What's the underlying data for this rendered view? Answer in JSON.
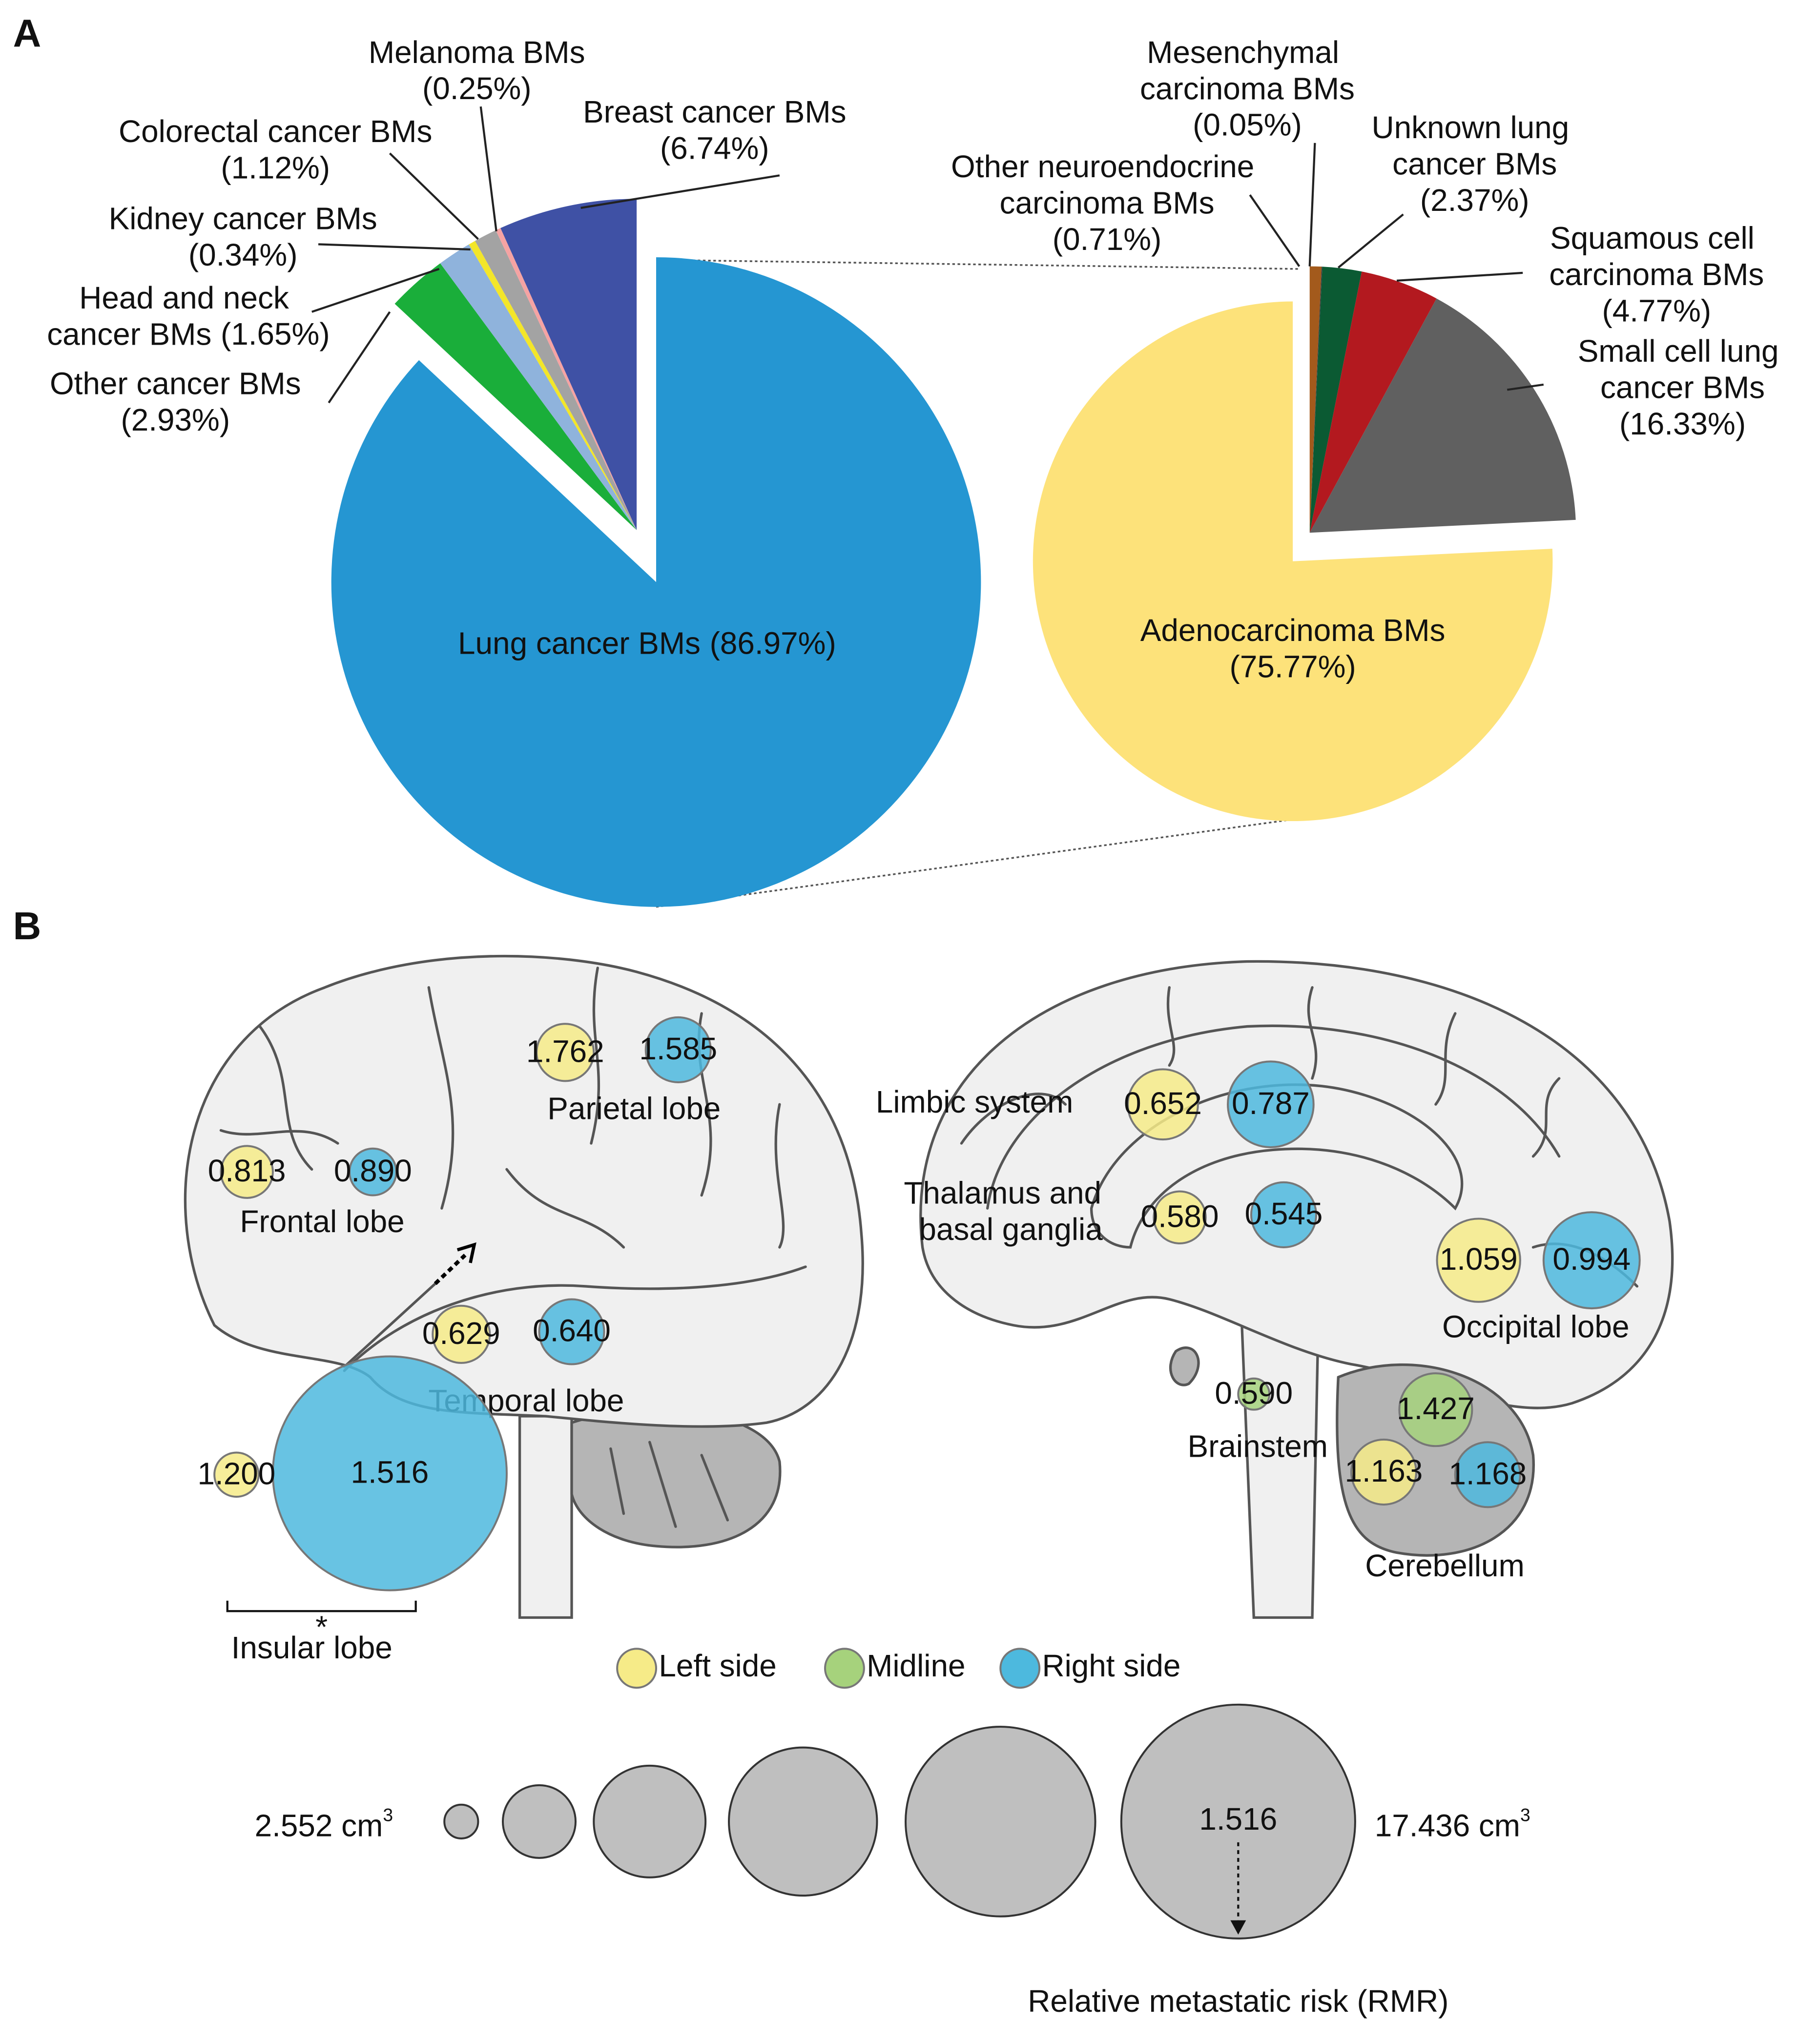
{
  "panel_labels": [
    "A",
    "B"
  ],
  "chart_data": [
    {
      "type": "pie",
      "categories": [
        "Lung cancer BMs",
        "Other cancer BMs",
        "Head and neck cancer BMs",
        "Kidney cancer BMs",
        "Colorectal cancer BMs",
        "Melanoma BMs",
        "Breast cancer BMs"
      ],
      "values": [
        86.97,
        2.93,
        1.65,
        0.34,
        1.12,
        0.25,
        6.74
      ],
      "value_labels": [
        "(86.97%)",
        "(2.93%)",
        "(1.65%)",
        "(0.34%)",
        "(1.12%)",
        "(0.25%)",
        "(6.74%)"
      ],
      "colors": [
        "#2596d2",
        "#1aae3a",
        "#8fb3dc",
        "#f3e629",
        "#a3a3a3",
        "#f5a3a3",
        "#3f51a5"
      ]
    },
    {
      "type": "pie",
      "categories": [
        "Other neuroendocrine carcinoma BMs",
        "Mesenchymal carcinoma BMs",
        "Unknown lung cancer BMs",
        "Squamous cell carcinoma BMs",
        "Small cell lung cancer BMs",
        "Adenocarcinoma BMs"
      ],
      "values": [
        0.71,
        0.05,
        2.37,
        4.77,
        16.33,
        75.77
      ],
      "value_labels": [
        "(0.71%)",
        "(0.05%)",
        "(2.37%)",
        "(4.77%)",
        "(16.33%)",
        "(75.77%)"
      ],
      "colors": [
        "#a35a1c",
        "#3d3d3d",
        "#0b5a33",
        "#b3191f",
        "#606060",
        "#fde27a"
      ]
    }
  ],
  "brain": {
    "regions": [
      {
        "name": "Parietal lobe",
        "left": {
          "value": 1.762,
          "label": "1.762"
        },
        "right": {
          "value": 1.585,
          "label": "1.585"
        }
      },
      {
        "name": "Frontal lobe",
        "left": {
          "value": 0.813,
          "label": "0.813"
        },
        "right": {
          "value": 0.89,
          "label": "0.890"
        }
      },
      {
        "name": "Temporal lobe",
        "left": {
          "value": 0.629,
          "label": "0.629"
        },
        "right": {
          "value": 0.64,
          "label": "0.640"
        }
      },
      {
        "name": "Insular lobe",
        "note": "*",
        "left": {
          "value": 1.2,
          "label": "1.200"
        },
        "right": {
          "value": 1.516,
          "label": "1.516"
        }
      },
      {
        "name": "Limbic system",
        "left": {
          "value": 0.652,
          "label": "0.652"
        },
        "right": {
          "value": 0.787,
          "label": "0.787"
        }
      },
      {
        "name": "Thalamus and basal ganglia",
        "left": {
          "value": 0.58,
          "label": "0.580"
        },
        "right": {
          "value": 0.545,
          "label": "0.545"
        }
      },
      {
        "name": "Occipital lobe",
        "left": {
          "value": 1.059,
          "label": "1.059"
        },
        "right": {
          "value": 0.994,
          "label": "0.994"
        }
      },
      {
        "name": "Brainstem",
        "midline": {
          "value": 0.59,
          "label": "0.590"
        }
      },
      {
        "name": "Cerebellum",
        "left": {
          "value": 1.163,
          "label": "1.163"
        },
        "midline": {
          "value": 1.427,
          "label": "1.427"
        },
        "right": {
          "value": 1.168,
          "label": "1.168"
        }
      }
    ],
    "legend": [
      {
        "name": "Left side",
        "color": "#f6eb88"
      },
      {
        "name": "Midline",
        "color": "#a6d27c"
      },
      {
        "name": "Right side",
        "color": "#4db9de"
      }
    ],
    "scale": {
      "min": {
        "value": 2.552,
        "unit": " cm",
        "exponent": "3"
      },
      "max": {
        "value": 17.436,
        "unit": " cm",
        "exponent": "3"
      },
      "example": 1.516,
      "caption": "Relative metastatic risk (RMR)"
    }
  }
}
